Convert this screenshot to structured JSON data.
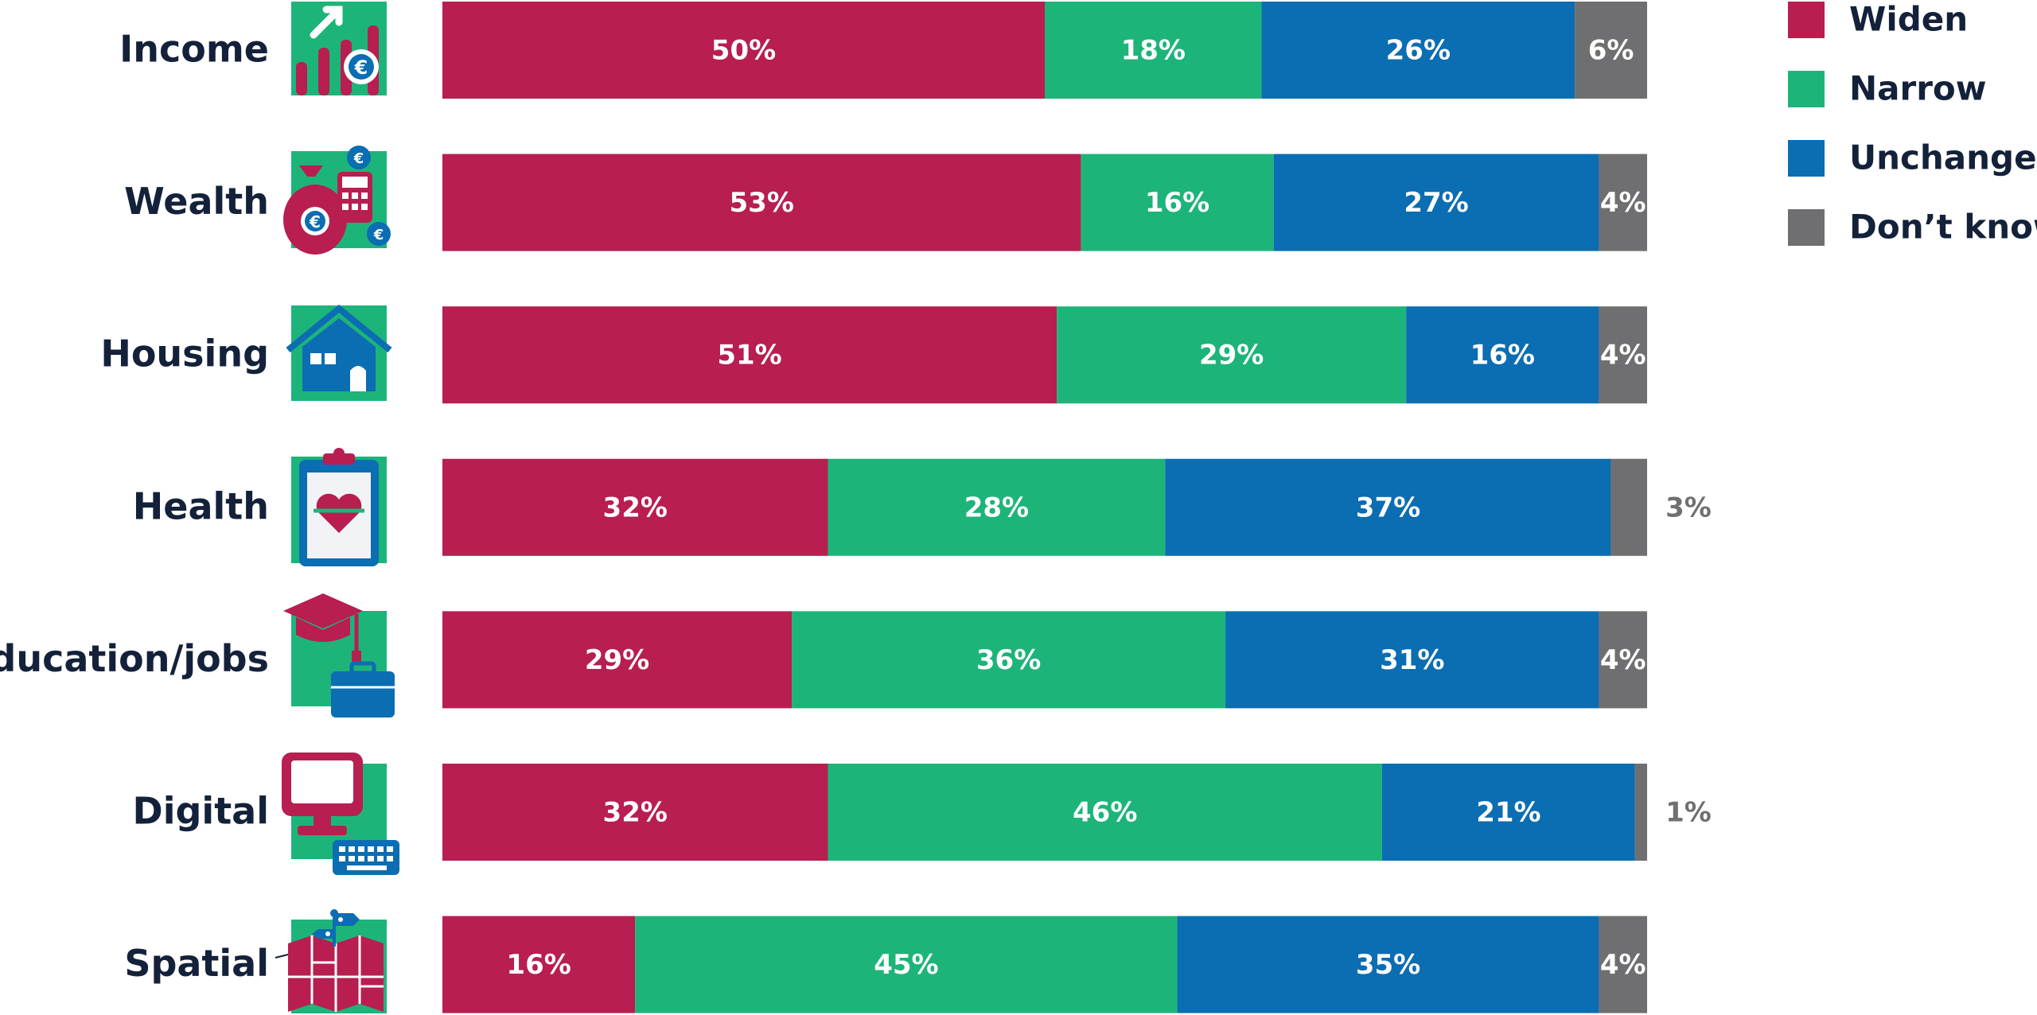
{
  "colors": {
    "widen": "#b81e50",
    "narrow": "#1db47a",
    "unchanged": "#0b6db2",
    "dont_know": "#6f6f71",
    "label_dark": "#14213a",
    "icon_bg": "#1db47a"
  },
  "chart_data": {
    "type": "bar",
    "orientation": "horizontal",
    "stacked": true,
    "categories": [
      "Income",
      "Wealth",
      "Housing",
      "Health",
      "Education/jobs",
      "Digital",
      "Spatial"
    ],
    "icons": [
      "income-chart-euro-icon",
      "wealth-moneybag-calculator-icon",
      "housing-house-icon",
      "health-clipboard-heart-icon",
      "education-jobs-cap-briefcase-icon",
      "digital-monitor-keyboard-icon",
      "spatial-map-pin-icon"
    ],
    "series": [
      {
        "name": "Widen",
        "color": "#b81e50",
        "values": [
          50,
          53,
          51,
          32,
          29,
          32,
          16
        ]
      },
      {
        "name": "Narrow",
        "color": "#1db47a",
        "values": [
          18,
          16,
          29,
          28,
          36,
          46,
          45
        ]
      },
      {
        "name": "Unchanged",
        "color": "#0b6db2",
        "values": [
          26,
          27,
          16,
          37,
          31,
          21,
          35
        ]
      },
      {
        "name": "Don’t know",
        "color": "#6f6f71",
        "values": [
          6,
          4,
          4,
          3,
          4,
          1,
          4
        ]
      }
    ],
    "data_labels": [
      [
        "50%",
        "18%",
        "26%",
        "6%"
      ],
      [
        "53%",
        "16%",
        "27%",
        "4%"
      ],
      [
        "51%",
        "29%",
        "16%",
        "4%"
      ],
      [
        "32%",
        "28%",
        "37%",
        "3%"
      ],
      [
        "29%",
        "36%",
        "31%",
        "4%"
      ],
      [
        "32%",
        "46%",
        "21%",
        "1%"
      ],
      [
        "16%",
        "45%",
        "35%",
        "4%"
      ]
    ],
    "xlim": [
      0,
      100
    ],
    "grid": false,
    "legend": "top-right",
    "title": "",
    "xlabel": "",
    "ylabel": ""
  }
}
